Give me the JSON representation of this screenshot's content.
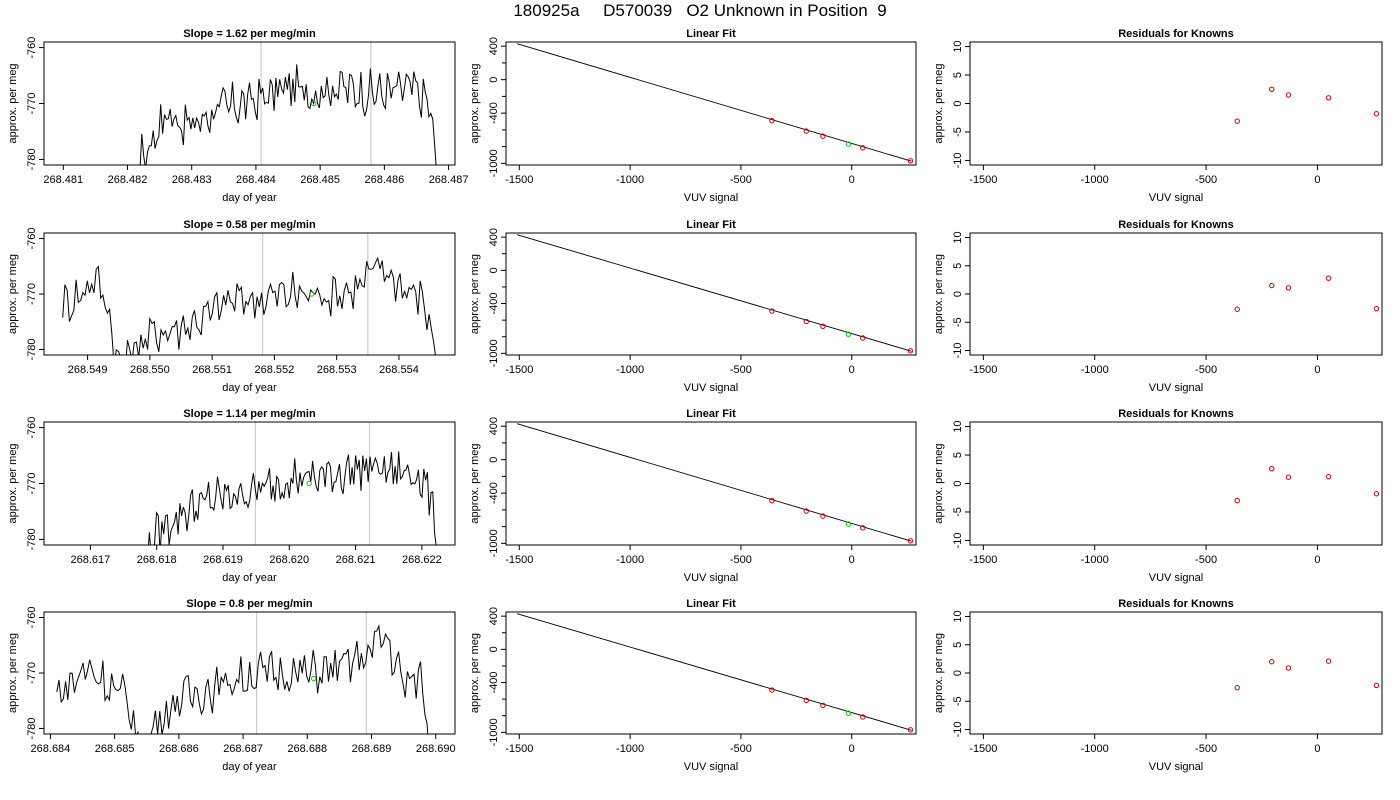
{
  "figure": {
    "title": "180925a     D570039   O2 Unknown in Position  9"
  },
  "colors": {
    "trace": "#000000",
    "marker_vertical": "#cccccc",
    "unknown_point": "#00cc00",
    "known_points": "#cc0000",
    "fit_line": "#000000",
    "axis": "#000000"
  },
  "chart_data": [
    {
      "type": "line",
      "row": 1,
      "panel": "time-series",
      "title": "Slope =  1.62  per meg/min",
      "xlabel": "day of year",
      "ylabel": "approx. per meg",
      "xlim": [
        268.4807,
        268.4871
      ],
      "ylim": [
        -781,
        -759
      ],
      "xticks": [
        "268.481",
        "268.482",
        "268.483",
        "268.484",
        "268.485",
        "268.486",
        "268.487"
      ],
      "yticks": [
        "-760",
        "-770",
        "-780"
      ],
      "trace_x_range": [
        268.4817,
        268.4869
      ],
      "trace_envelope": [
        [
          268.4819,
          -788
        ],
        [
          268.4822,
          -780
        ],
        [
          268.4826,
          -772
        ],
        [
          268.483,
          -774
        ],
        [
          268.4834,
          -771
        ],
        [
          268.4838,
          -770
        ],
        [
          268.4841,
          -769
        ],
        [
          268.4845,
          -767
        ],
        [
          268.4849,
          -768
        ],
        [
          268.4853,
          -767
        ],
        [
          268.4857,
          -768
        ],
        [
          268.4861,
          -768
        ],
        [
          268.4864,
          -767
        ],
        [
          268.4867,
          -770
        ],
        [
          268.4869,
          -790
        ]
      ],
      "vertical_markers": [
        268.48408,
        268.48579
      ],
      "unknown_point": {
        "x": 268.4849,
        "y": -770
      }
    },
    {
      "type": "line",
      "row": 2,
      "panel": "time-series",
      "title": "Slope =  0.58  per meg/min",
      "xlabel": "day of year",
      "ylabel": "approx. per meg",
      "xlim": [
        268.5483,
        268.5549
      ],
      "ylim": [
        -781,
        -759
      ],
      "xticks": [
        "268.549",
        "268.550",
        "268.551",
        "268.552",
        "268.553",
        "268.554"
      ],
      "yticks": [
        "-760",
        "-770",
        "-780"
      ],
      "trace_x_range": [
        268.5486,
        268.5547
      ],
      "trace_envelope": [
        [
          268.5486,
          -772
        ],
        [
          268.5489,
          -770
        ],
        [
          268.5491,
          -767
        ],
        [
          268.5493,
          -771
        ],
        [
          268.5495,
          -783
        ],
        [
          268.5498,
          -779
        ],
        [
          268.5501,
          -777
        ],
        [
          268.5505,
          -776
        ],
        [
          268.5509,
          -774
        ],
        [
          268.5513,
          -771
        ],
        [
          268.5517,
          -771
        ],
        [
          268.5521,
          -770
        ],
        [
          268.5525,
          -770
        ],
        [
          268.5529,
          -770
        ],
        [
          268.5533,
          -769
        ],
        [
          268.5537,
          -765
        ],
        [
          268.5541,
          -769
        ],
        [
          268.5544,
          -771
        ],
        [
          268.5547,
          -785
        ]
      ],
      "vertical_markers": [
        268.55181,
        268.5535
      ],
      "unknown_point": {
        "x": 268.5526,
        "y": -770
      }
    },
    {
      "type": "line",
      "row": 3,
      "panel": "time-series",
      "title": "Slope =  1.14  per meg/min",
      "xlabel": "day of year",
      "ylabel": "approx. per meg",
      "xlim": [
        268.6163,
        268.6225
      ],
      "ylim": [
        -781,
        -759
      ],
      "xticks": [
        "268.617",
        "268.618",
        "268.619",
        "268.620",
        "268.621",
        "268.622"
      ],
      "yticks": [
        "-760",
        "-770",
        "-780"
      ],
      "trace_x_range": [
        268.6175,
        268.6223
      ],
      "trace_envelope": [
        [
          268.6177,
          -787
        ],
        [
          268.618,
          -779
        ],
        [
          268.6184,
          -775
        ],
        [
          268.6188,
          -773
        ],
        [
          268.6192,
          -772
        ],
        [
          268.6196,
          -771
        ],
        [
          268.62,
          -769
        ],
        [
          268.6204,
          -769
        ],
        [
          268.6208,
          -768
        ],
        [
          268.6212,
          -767
        ],
        [
          268.6216,
          -768
        ],
        [
          268.6219,
          -768
        ],
        [
          268.6221,
          -771
        ],
        [
          268.6223,
          -785
        ]
      ],
      "vertical_markers": [
        268.61949,
        268.62121
      ],
      "unknown_point": {
        "x": 268.6203,
        "y": -770
      }
    },
    {
      "type": "line",
      "row": 4,
      "panel": "time-series",
      "title": "Slope =  0.8  per meg/min",
      "xlabel": "day of year",
      "ylabel": "approx. per meg",
      "xlim": [
        268.6839,
        268.6903
      ],
      "ylim": [
        -781,
        -759
      ],
      "xticks": [
        "268.684",
        "268.685",
        "268.686",
        "268.687",
        "268.688",
        "268.689",
        "268.690"
      ],
      "yticks": [
        "-760",
        "-770",
        "-780"
      ],
      "trace_x_range": [
        268.6841,
        268.6899
      ],
      "trace_envelope": [
        [
          268.6841,
          -774
        ],
        [
          268.6843,
          -772
        ],
        [
          268.6846,
          -769
        ],
        [
          268.6849,
          -772
        ],
        [
          268.6852,
          -775
        ],
        [
          268.6854,
          -784
        ],
        [
          268.6857,
          -778
        ],
        [
          268.6861,
          -774
        ],
        [
          268.6865,
          -773
        ],
        [
          268.6869,
          -771
        ],
        [
          268.6873,
          -770
        ],
        [
          268.6877,
          -770
        ],
        [
          268.6881,
          -770
        ],
        [
          268.6885,
          -769
        ],
        [
          268.6889,
          -767
        ],
        [
          268.6892,
          -763
        ],
        [
          268.6895,
          -772
        ],
        [
          268.6898,
          -771
        ],
        [
          268.6899,
          -785
        ]
      ],
      "vertical_markers": [
        268.68721,
        268.68892
      ],
      "unknown_point": {
        "x": 268.6881,
        "y": -771
      }
    },
    {
      "type": "line",
      "row": 1,
      "panel": "linear-fit",
      "title": "Linear Fit",
      "xlabel": "VUV signal",
      "ylabel": "approx. per meg",
      "xlim": [
        -1560,
        290
      ],
      "ylim": [
        -1020,
        450
      ],
      "xticks": [
        "-1500",
        "-1000",
        "-500",
        "0"
      ],
      "yticks": [
        "400",
        "0",
        "-400",
        "-1000"
      ],
      "line": {
        "from": [
          -1510,
          430
        ],
        "to": [
          270,
          -975
        ]
      },
      "known_points": {
        "x": [
          -360,
          -205,
          -130,
          50,
          265
        ],
        "y": [
          -490,
          -615,
          -675,
          -815,
          -970
        ]
      },
      "unknown_point": {
        "x": -15,
        "y": -770
      }
    },
    {
      "type": "line",
      "row": 2,
      "panel": "linear-fit",
      "title": "Linear Fit",
      "xlabel": "VUV signal",
      "ylabel": "approx. per meg",
      "xlim": [
        -1560,
        290
      ],
      "ylim": [
        -1020,
        450
      ],
      "xticks": [
        "-1500",
        "-1000",
        "-500",
        "0"
      ],
      "yticks": [
        "400",
        "0",
        "-400",
        "-1000"
      ],
      "line": {
        "from": [
          -1510,
          430
        ],
        "to": [
          270,
          -975
        ]
      },
      "known_points": {
        "x": [
          -360,
          -205,
          -130,
          50,
          265
        ],
        "y": [
          -490,
          -615,
          -675,
          -815,
          -970
        ]
      },
      "unknown_point": {
        "x": -15,
        "y": -770
      }
    },
    {
      "type": "line",
      "row": 3,
      "panel": "linear-fit",
      "title": "Linear Fit",
      "xlabel": "VUV signal",
      "ylabel": "approx. per meg",
      "xlim": [
        -1560,
        290
      ],
      "ylim": [
        -1020,
        450
      ],
      "xticks": [
        "-1500",
        "-1000",
        "-500",
        "0"
      ],
      "yticks": [
        "400",
        "0",
        "-400",
        "-1000"
      ],
      "line": {
        "from": [
          -1510,
          430
        ],
        "to": [
          270,
          -975
        ]
      },
      "known_points": {
        "x": [
          -360,
          -205,
          -130,
          50,
          265
        ],
        "y": [
          -490,
          -615,
          -675,
          -815,
          -970
        ]
      },
      "unknown_point": {
        "x": -15,
        "y": -770
      }
    },
    {
      "type": "line",
      "row": 4,
      "panel": "linear-fit",
      "title": "Linear Fit",
      "xlabel": "VUV signal",
      "ylabel": "approx. per meg",
      "xlim": [
        -1560,
        290
      ],
      "ylim": [
        -1020,
        450
      ],
      "xticks": [
        "-1500",
        "-1000",
        "-500",
        "0"
      ],
      "yticks": [
        "400",
        "0",
        "-400",
        "-1000"
      ],
      "line": {
        "from": [
          -1510,
          430
        ],
        "to": [
          270,
          -975
        ]
      },
      "known_points": {
        "x": [
          -360,
          -205,
          -130,
          50,
          265
        ],
        "y": [
          -490,
          -615,
          -675,
          -815,
          -970
        ]
      },
      "unknown_point": {
        "x": -15,
        "y": -770
      }
    },
    {
      "type": "scatter",
      "row": 1,
      "panel": "residuals",
      "title": "Residuals for Knowns",
      "xlabel": "VUV signal",
      "ylabel": "approx. per meg",
      "xlim": [
        -1560,
        290
      ],
      "ylim": [
        -10.8,
        10.8
      ],
      "xticks": [
        "-1500",
        "-1000",
        "-500",
        "0"
      ],
      "yticks": [
        "10",
        "5",
        "0",
        "-5",
        "-10"
      ],
      "points": {
        "x": [
          -360,
          -205,
          -130,
          50,
          265
        ],
        "y": [
          -3.1,
          2.5,
          1.5,
          1.0,
          -1.8
        ]
      }
    },
    {
      "type": "scatter",
      "row": 2,
      "panel": "residuals",
      "title": "Residuals for Knowns",
      "xlabel": "VUV signal",
      "ylabel": "approx. per meg",
      "xlim": [
        -1560,
        290
      ],
      "ylim": [
        -10.8,
        10.8
      ],
      "xticks": [
        "-1500",
        "-1000",
        "-500",
        "0"
      ],
      "yticks": [
        "10",
        "5",
        "0",
        "-5",
        "-10"
      ],
      "points": {
        "x": [
          -360,
          -205,
          -130,
          50,
          265
        ],
        "y": [
          -2.7,
          1.5,
          1.1,
          2.8,
          -2.6
        ]
      }
    },
    {
      "type": "scatter",
      "row": 3,
      "panel": "residuals",
      "title": "Residuals for Knowns",
      "xlabel": "VUV signal",
      "ylabel": "approx. per meg",
      "xlim": [
        -1560,
        290
      ],
      "ylim": [
        -10.8,
        10.8
      ],
      "xticks": [
        "-1500",
        "-1000",
        "-500",
        "0"
      ],
      "yticks": [
        "10",
        "5",
        "0",
        "-5",
        "-10"
      ],
      "points": {
        "x": [
          -360,
          -205,
          -130,
          50,
          265
        ],
        "y": [
          -3.0,
          2.6,
          1.1,
          1.2,
          -1.8
        ]
      }
    },
    {
      "type": "scatter",
      "row": 4,
      "panel": "residuals",
      "title": "Residuals for Knowns",
      "xlabel": "VUV signal",
      "ylabel": "approx. per meg",
      "xlim": [
        -1560,
        290
      ],
      "ylim": [
        -10.8,
        10.8
      ],
      "xticks": [
        "-1500",
        "-1000",
        "-500",
        "0"
      ],
      "yticks": [
        "10",
        "5",
        "0",
        "-5",
        "-10"
      ],
      "points": {
        "x": [
          -360,
          -205,
          -130,
          50,
          265
        ],
        "y": [
          -2.6,
          2.0,
          0.9,
          2.1,
          -2.2
        ]
      }
    }
  ]
}
